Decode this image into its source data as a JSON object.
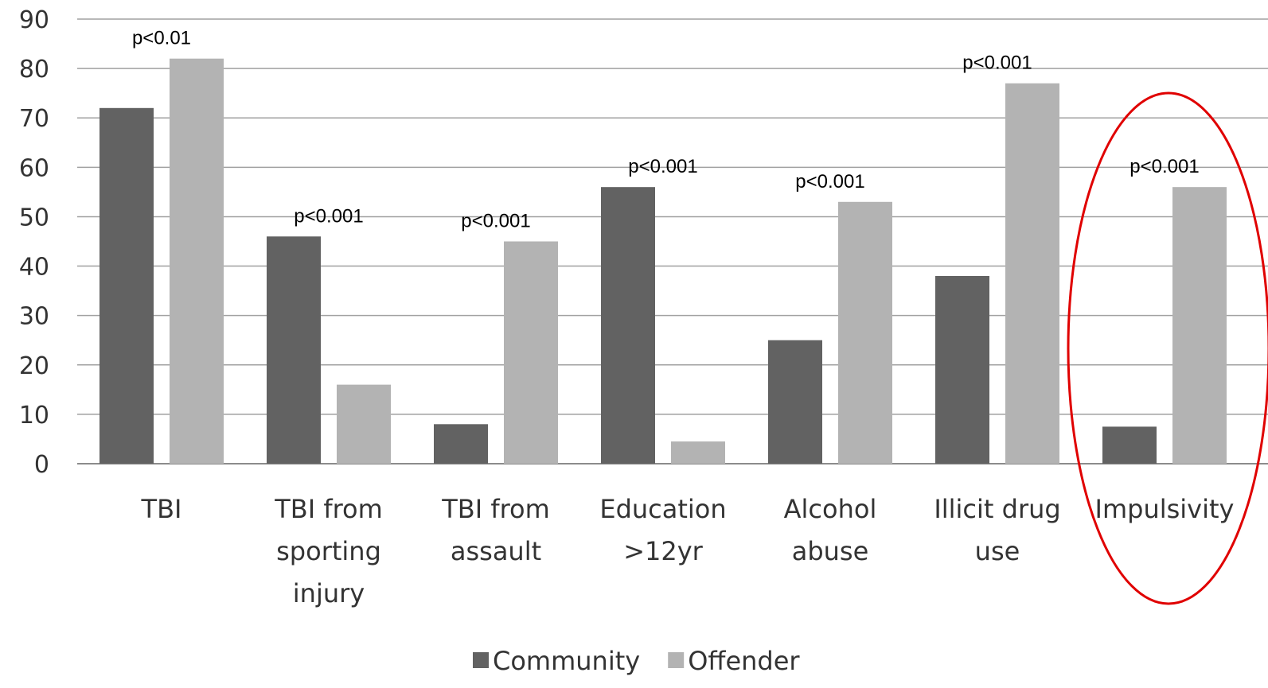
{
  "chart_data": {
    "type": "bar",
    "title": "",
    "xlabel": "",
    "ylabel": "",
    "ylim": [
      0,
      90
    ],
    "yticks": [
      0,
      10,
      20,
      30,
      40,
      50,
      60,
      70,
      80,
      90
    ],
    "grid": "horizontal",
    "legend_position": "bottom",
    "categories": [
      [
        "TBI"
      ],
      [
        "TBI from",
        "sporting",
        "injury"
      ],
      [
        "TBI from",
        "assault"
      ],
      [
        "Education",
        ">12yr"
      ],
      [
        "Alcohol",
        "abuse"
      ],
      [
        "Illicit drug",
        "use"
      ],
      [
        "Impulsivity"
      ]
    ],
    "series": [
      {
        "name": "Community",
        "color": "#626262",
        "values": [
          72,
          46,
          8,
          56,
          25,
          38,
          7.5
        ]
      },
      {
        "name": "Offender",
        "color": "#b3b3b3",
        "values": [
          82,
          16,
          45,
          4.5,
          53,
          77,
          56
        ]
      }
    ],
    "annotations": [
      "p<0.01",
      "p<0.001",
      "p<0.001",
      "p<0.001",
      "p<0.001",
      "p<0.001",
      "p<0.001"
    ],
    "highlight": {
      "category": "Impulsivity",
      "shape": "ellipse",
      "color": "#e00000"
    }
  }
}
